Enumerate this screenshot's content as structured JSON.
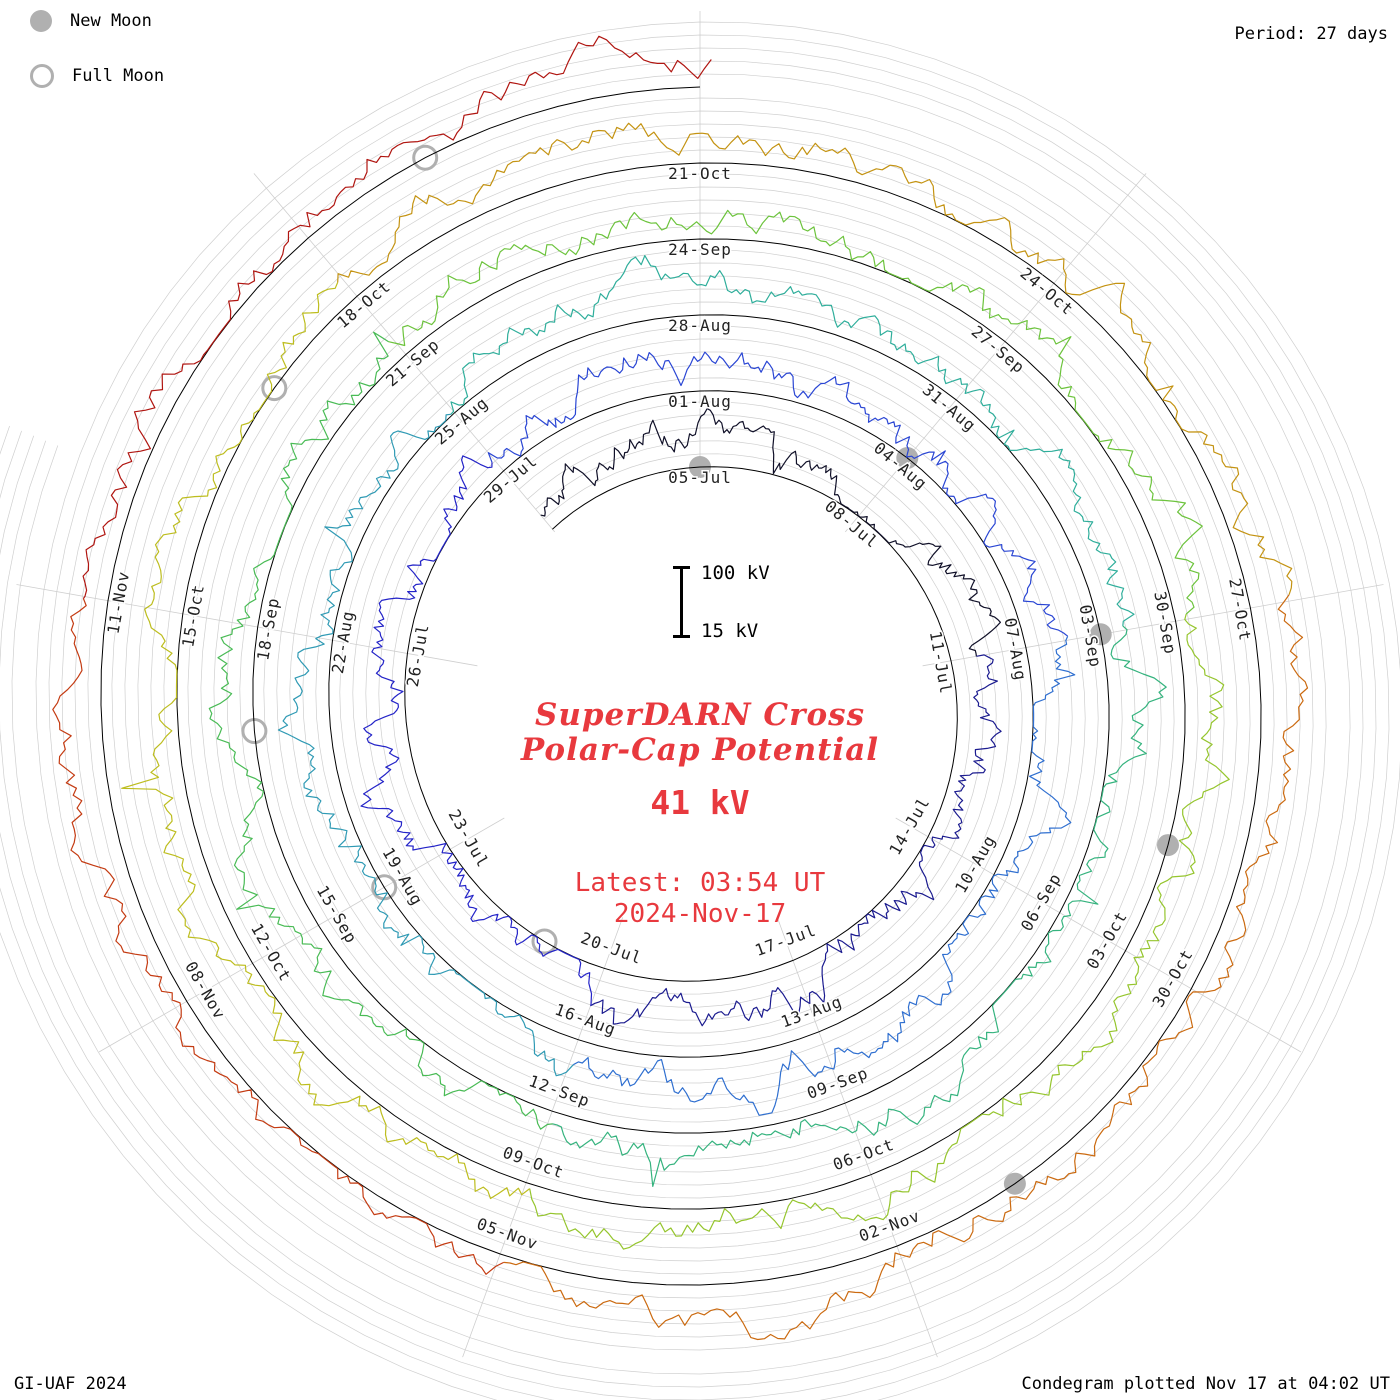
{
  "meta": {
    "period_label": "Period: 27 days",
    "credit": "GI-UAF 2024",
    "plotted_label": "Condegram plotted Nov 17 at 04:02 UT"
  },
  "legend": {
    "new_moon": "New Moon",
    "full_moon": "Full Moon"
  },
  "center": {
    "title_line1": "SuperDARN Cross",
    "title_line2": "Polar-Cap Potential",
    "current_value": "41 kV",
    "latest_line1": "Latest: 03:54 UT",
    "latest_line2": "2024-Nov-17",
    "scale_top": "100 kV",
    "scale_bottom": "15 kV"
  },
  "chart_data": {
    "type": "line",
    "subtype": "condegram-polar-spiral",
    "title": "SuperDARN Cross Polar-Cap Potential",
    "latest_value_kv": 41,
    "latest_time_ut": "03:54 UT",
    "latest_date": "2024-Nov-17",
    "period_days": 27,
    "scale_kv": {
      "min": 15,
      "max": 100
    },
    "grid": "on",
    "date_labels": [
      {
        "text": "05-Jul",
        "day": 0
      },
      {
        "text": "08-Jul",
        "day": 3
      },
      {
        "text": "11-Jul",
        "day": 6
      },
      {
        "text": "14-Jul",
        "day": 9
      },
      {
        "text": "17-Jul",
        "day": 12
      },
      {
        "text": "20-Jul",
        "day": 15
      },
      {
        "text": "23-Jul",
        "day": 18
      },
      {
        "text": "26-Jul",
        "day": 21
      },
      {
        "text": "29-Jul",
        "day": 24
      },
      {
        "text": "01-Aug",
        "day": 27
      },
      {
        "text": "04-Aug",
        "day": 30
      },
      {
        "text": "07-Aug",
        "day": 33
      },
      {
        "text": "10-Aug",
        "day": 36
      },
      {
        "text": "13-Aug",
        "day": 39
      },
      {
        "text": "16-Aug",
        "day": 42
      },
      {
        "text": "19-Aug",
        "day": 45
      },
      {
        "text": "22-Aug",
        "day": 48
      },
      {
        "text": "25-Aug",
        "day": 51
      },
      {
        "text": "28-Aug",
        "day": 54
      },
      {
        "text": "31-Aug",
        "day": 57
      },
      {
        "text": "03-Sep",
        "day": 60
      },
      {
        "text": "06-Sep",
        "day": 63
      },
      {
        "text": "09-Sep",
        "day": 66
      },
      {
        "text": "12-Sep",
        "day": 69
      },
      {
        "text": "15-Sep",
        "day": 72
      },
      {
        "text": "18-Sep",
        "day": 75
      },
      {
        "text": "21-Sep",
        "day": 78
      },
      {
        "text": "24-Sep",
        "day": 81
      },
      {
        "text": "27-Sep",
        "day": 84
      },
      {
        "text": "30-Sep",
        "day": 87
      },
      {
        "text": "03-Oct",
        "day": 90
      },
      {
        "text": "06-Oct",
        "day": 93
      },
      {
        "text": "09-Oct",
        "day": 96
      },
      {
        "text": "12-Oct",
        "day": 99
      },
      {
        "text": "15-Oct",
        "day": 102
      },
      {
        "text": "18-Oct",
        "day": 105
      },
      {
        "text": "21-Oct",
        "day": 108
      },
      {
        "text": "24-Oct",
        "day": 111
      },
      {
        "text": "27-Oct",
        "day": 114
      },
      {
        "text": "30-Oct",
        "day": 117
      },
      {
        "text": "02-Nov",
        "day": 120
      },
      {
        "text": "05-Nov",
        "day": 123
      },
      {
        "text": "08-Nov",
        "day": 126
      },
      {
        "text": "11-Nov",
        "day": 129
      }
    ],
    "moon_events": [
      {
        "date": "05-Jul",
        "day": 0,
        "type": "new"
      },
      {
        "date": "04-Aug",
        "day": 30,
        "type": "new"
      },
      {
        "date": "03-Sep",
        "day": 60,
        "type": "new"
      },
      {
        "date": "02-Oct",
        "day": 89,
        "type": "new"
      },
      {
        "date": "01-Nov",
        "day": 119,
        "type": "new"
      },
      {
        "date": "21-Jul",
        "day": 16,
        "type": "full"
      },
      {
        "date": "19-Aug",
        "day": 45,
        "type": "full"
      },
      {
        "date": "17-Sep",
        "day": 74,
        "type": "full"
      },
      {
        "date": "17-Oct",
        "day": 104,
        "type": "full"
      },
      {
        "date": "15-Nov",
        "day": 133,
        "type": "full"
      }
    ],
    "color_bands": [
      {
        "start": -3,
        "end": 6,
        "color": "#101028"
      },
      {
        "start": 6,
        "end": 15,
        "color": "#1b1b8f"
      },
      {
        "start": 15,
        "end": 24,
        "color": "#2424c8"
      },
      {
        "start": 24,
        "end": 33,
        "color": "#2a46d4"
      },
      {
        "start": 33,
        "end": 42,
        "color": "#2f6fd0"
      },
      {
        "start": 42,
        "end": 51,
        "color": "#2f9ab4"
      },
      {
        "start": 51,
        "end": 60,
        "color": "#2fae9b"
      },
      {
        "start": 60,
        "end": 69,
        "color": "#35b37e"
      },
      {
        "start": 69,
        "end": 78,
        "color": "#49bb55"
      },
      {
        "start": 78,
        "end": 87,
        "color": "#6cc33c"
      },
      {
        "start": 87,
        "end": 96,
        "color": "#95c52d"
      },
      {
        "start": 96,
        "end": 105,
        "color": "#bdbd1e"
      },
      {
        "start": 105,
        "end": 114,
        "color": "#c49312"
      },
      {
        "start": 114,
        "end": 123,
        "color": "#cb6a10"
      },
      {
        "start": 123,
        "end": 129,
        "color": "#c43b12"
      },
      {
        "start": 129,
        "end": 135.1,
        "color": "#b01510"
      }
    ],
    "colors": {
      "annotation": "#e8393e",
      "grid": "#cfcfcf",
      "baseline": "#000000",
      "moon": "#b0b0b0",
      "date_label": "#222222"
    }
  }
}
